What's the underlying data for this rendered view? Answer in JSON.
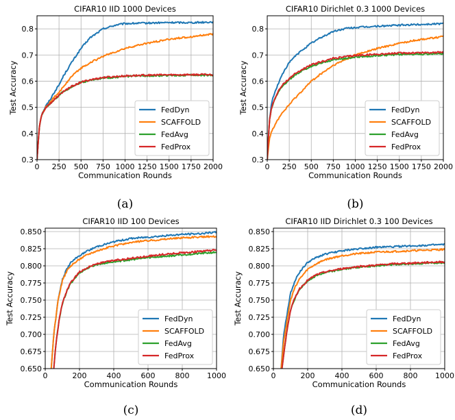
{
  "chart_data": [
    {
      "type": "line",
      "title": "CIFAR10 IID 1000 Devices",
      "xlabel": "Communication Rounds",
      "ylabel": "Test Accuracy",
      "caption": "(a)",
      "xlim": [
        0,
        2000
      ],
      "ylim": [
        0.3,
        0.85
      ],
      "xticks": [
        0,
        250,
        500,
        750,
        1000,
        1250,
        1500,
        1750,
        2000
      ],
      "xtick_labels": [
        "0",
        "250",
        "500",
        "750",
        "1000",
        "1250",
        "1500",
        "1750",
        "2000"
      ],
      "yticks": [
        0.3,
        0.4,
        0.5,
        0.6,
        0.7,
        0.8
      ],
      "ytick_labels": [
        "0.3",
        "0.4",
        "0.5",
        "0.6",
        "0.7",
        "0.8"
      ],
      "grid": true,
      "legend": "lower-right",
      "series": [
        {
          "name": "FedDyn",
          "color": "#1f77b4",
          "x": [
            0,
            25,
            50,
            100,
            150,
            200,
            250,
            300,
            400,
            500,
            600,
            750,
            900,
            1000,
            1250,
            1500,
            1750,
            2000
          ],
          "y": [
            0.3,
            0.42,
            0.47,
            0.505,
            0.53,
            0.56,
            0.585,
            0.62,
            0.675,
            0.725,
            0.765,
            0.8,
            0.815,
            0.82,
            0.822,
            0.824,
            0.824,
            0.826
          ]
        },
        {
          "name": "SCAFFOLD",
          "color": "#ff7f0e",
          "x": [
            0,
            25,
            50,
            100,
            150,
            200,
            250,
            300,
            400,
            500,
            600,
            750,
            1000,
            1250,
            1500,
            1750,
            2000
          ],
          "y": [
            0.3,
            0.42,
            0.47,
            0.5,
            0.52,
            0.54,
            0.555,
            0.58,
            0.62,
            0.65,
            0.67,
            0.695,
            0.725,
            0.745,
            0.76,
            0.77,
            0.78
          ]
        },
        {
          "name": "FedAvg",
          "color": "#2ca02c",
          "x": [
            0,
            25,
            50,
            100,
            150,
            200,
            250,
            300,
            400,
            500,
            600,
            750,
            1000,
            1250,
            1500,
            1750,
            2000
          ],
          "y": [
            0.3,
            0.42,
            0.47,
            0.5,
            0.515,
            0.53,
            0.545,
            0.56,
            0.58,
            0.595,
            0.603,
            0.612,
            0.618,
            0.621,
            0.622,
            0.623,
            0.623
          ]
        },
        {
          "name": "FedProx",
          "color": "#d62728",
          "x": [
            0,
            25,
            50,
            100,
            150,
            200,
            250,
            300,
            400,
            500,
            600,
            750,
            1000,
            1250,
            1500,
            1750,
            2000
          ],
          "y": [
            0.3,
            0.42,
            0.47,
            0.5,
            0.515,
            0.53,
            0.546,
            0.561,
            0.581,
            0.596,
            0.605,
            0.614,
            0.62,
            0.623,
            0.624,
            0.625,
            0.625
          ]
        }
      ]
    },
    {
      "type": "line",
      "title": "CIFAR10 Dirichlet 0.3 1000 Devices",
      "xlabel": "Communication Rounds",
      "ylabel": "Test Accuracy",
      "caption": "(b)",
      "xlim": [
        0,
        2000
      ],
      "ylim": [
        0.3,
        0.85
      ],
      "xticks": [
        0,
        250,
        500,
        750,
        1000,
        1250,
        1500,
        1750,
        2000
      ],
      "xtick_labels": [
        "0",
        "250",
        "500",
        "750",
        "1000",
        "1250",
        "1500",
        "1750",
        "2000"
      ],
      "yticks": [
        0.3,
        0.4,
        0.5,
        0.6,
        0.7,
        0.8
      ],
      "ytick_labels": [
        "0.3",
        "0.4",
        "0.5",
        "0.6",
        "0.7",
        "0.8"
      ],
      "grid": true,
      "legend": "lower-right",
      "series": [
        {
          "name": "FedDyn",
          "color": "#1f77b4",
          "x": [
            0,
            25,
            50,
            100,
            150,
            200,
            250,
            300,
            400,
            500,
            600,
            750,
            900,
            1000,
            1250,
            1500,
            1750,
            2000
          ],
          "y": [
            0.3,
            0.45,
            0.52,
            0.57,
            0.61,
            0.645,
            0.67,
            0.69,
            0.72,
            0.745,
            0.765,
            0.79,
            0.802,
            0.805,
            0.81,
            0.814,
            0.817,
            0.82
          ]
        },
        {
          "name": "SCAFFOLD",
          "color": "#ff7f0e",
          "x": [
            0,
            25,
            50,
            100,
            150,
            200,
            250,
            300,
            400,
            500,
            600,
            750,
            1000,
            1250,
            1500,
            1750,
            2000
          ],
          "y": [
            0.3,
            0.38,
            0.41,
            0.44,
            0.47,
            0.49,
            0.51,
            0.53,
            0.565,
            0.6,
            0.625,
            0.66,
            0.7,
            0.725,
            0.745,
            0.76,
            0.77
          ]
        },
        {
          "name": "FedAvg",
          "color": "#2ca02c",
          "x": [
            0,
            25,
            50,
            100,
            150,
            200,
            250,
            300,
            400,
            500,
            600,
            750,
            1000,
            1250,
            1500,
            1750,
            2000
          ],
          "y": [
            0.3,
            0.45,
            0.5,
            0.54,
            0.57,
            0.59,
            0.605,
            0.62,
            0.64,
            0.657,
            0.668,
            0.682,
            0.692,
            0.698,
            0.702,
            0.704,
            0.705
          ]
        },
        {
          "name": "FedProx",
          "color": "#d62728",
          "x": [
            0,
            25,
            50,
            100,
            150,
            200,
            250,
            300,
            400,
            500,
            600,
            750,
            1000,
            1250,
            1500,
            1750,
            2000
          ],
          "y": [
            0.3,
            0.45,
            0.5,
            0.545,
            0.575,
            0.595,
            0.61,
            0.625,
            0.645,
            0.662,
            0.673,
            0.687,
            0.698,
            0.703,
            0.707,
            0.709,
            0.71
          ]
        }
      ]
    },
    {
      "type": "line",
      "title": "CIFAR10 IID 100 Devices",
      "xlabel": "Communication Rounds",
      "ylabel": "Test Accuracy",
      "caption": "(c)",
      "xlim": [
        0,
        1000
      ],
      "ylim": [
        0.65,
        0.855
      ],
      "xticks": [
        0,
        200,
        400,
        600,
        800,
        1000
      ],
      "xtick_labels": [
        "0",
        "200",
        "400",
        "600",
        "800",
        "1000"
      ],
      "yticks": [
        0.65,
        0.675,
        0.7,
        0.725,
        0.75,
        0.775,
        0.8,
        0.825,
        0.85
      ],
      "ytick_labels": [
        "0.650",
        "0.675",
        "0.700",
        "0.725",
        "0.750",
        "0.775",
        "0.800",
        "0.825",
        "0.850"
      ],
      "grid": true,
      "legend": "lower-right",
      "series": [
        {
          "name": "FedDyn",
          "color": "#1f77b4",
          "x": [
            35,
            50,
            75,
            100,
            125,
            150,
            200,
            250,
            300,
            400,
            500,
            600,
            700,
            800,
            900,
            1000
          ],
          "y": [
            0.65,
            0.7,
            0.75,
            0.78,
            0.795,
            0.805,
            0.815,
            0.822,
            0.828,
            0.835,
            0.84,
            0.842,
            0.844,
            0.846,
            0.847,
            0.849
          ]
        },
        {
          "name": "SCAFFOLD",
          "color": "#ff7f0e",
          "x": [
            35,
            50,
            75,
            100,
            125,
            150,
            200,
            250,
            300,
            400,
            500,
            600,
            700,
            800,
            900,
            1000
          ],
          "y": [
            0.65,
            0.7,
            0.75,
            0.778,
            0.792,
            0.8,
            0.81,
            0.817,
            0.822,
            0.829,
            0.834,
            0.837,
            0.839,
            0.841,
            0.842,
            0.843
          ]
        },
        {
          "name": "FedAvg",
          "color": "#2ca02c",
          "x": [
            50,
            60,
            80,
            100,
            125,
            150,
            200,
            250,
            300,
            400,
            500,
            600,
            700,
            800,
            900,
            1000
          ],
          "y": [
            0.65,
            0.68,
            0.72,
            0.745,
            0.762,
            0.775,
            0.79,
            0.797,
            0.802,
            0.806,
            0.809,
            0.812,
            0.814,
            0.816,
            0.818,
            0.82
          ]
        },
        {
          "name": "FedProx",
          "color": "#d62728",
          "x": [
            50,
            60,
            80,
            100,
            125,
            150,
            200,
            250,
            300,
            400,
            500,
            600,
            700,
            800,
            900,
            1000
          ],
          "y": [
            0.65,
            0.68,
            0.72,
            0.745,
            0.763,
            0.776,
            0.791,
            0.798,
            0.803,
            0.808,
            0.811,
            0.814,
            0.817,
            0.819,
            0.821,
            0.823
          ]
        }
      ]
    },
    {
      "type": "line",
      "title": "CIFAR10 IID Dirichlet 0.3 100 Devices",
      "xlabel": "Communication Rounds",
      "ylabel": "Test Accuracy",
      "caption": "(d)",
      "xlim": [
        0,
        1000
      ],
      "ylim": [
        0.65,
        0.855
      ],
      "xticks": [
        0,
        200,
        400,
        600,
        800,
        1000
      ],
      "xtick_labels": [
        "0",
        "200",
        "400",
        "600",
        "800",
        "1000"
      ],
      "yticks": [
        0.65,
        0.675,
        0.7,
        0.725,
        0.75,
        0.775,
        0.8,
        0.825,
        0.85
      ],
      "ytick_labels": [
        "0.650",
        "0.675",
        "0.700",
        "0.725",
        "0.750",
        "0.775",
        "0.800",
        "0.825",
        "0.850"
      ],
      "grid": true,
      "legend": "lower-right",
      "series": [
        {
          "name": "FedDyn",
          "color": "#1f77b4",
          "x": [
            45,
            60,
            80,
            100,
            125,
            150,
            200,
            250,
            300,
            400,
            500,
            600,
            700,
            800,
            900,
            1000
          ],
          "y": [
            0.65,
            0.7,
            0.73,
            0.76,
            0.778,
            0.79,
            0.805,
            0.812,
            0.817,
            0.822,
            0.825,
            0.827,
            0.828,
            0.829,
            0.83,
            0.831
          ]
        },
        {
          "name": "SCAFFOLD",
          "color": "#ff7f0e",
          "x": [
            45,
            60,
            80,
            100,
            125,
            150,
            200,
            250,
            300,
            400,
            500,
            600,
            700,
            800,
            900,
            1000
          ],
          "y": [
            0.65,
            0.69,
            0.72,
            0.75,
            0.768,
            0.78,
            0.795,
            0.803,
            0.809,
            0.815,
            0.818,
            0.82,
            0.821,
            0.822,
            0.823,
            0.824
          ]
        },
        {
          "name": "FedAvg",
          "color": "#2ca02c",
          "x": [
            50,
            65,
            85,
            100,
            125,
            150,
            200,
            250,
            300,
            400,
            500,
            600,
            700,
            800,
            900,
            1000
          ],
          "y": [
            0.65,
            0.68,
            0.715,
            0.735,
            0.752,
            0.765,
            0.778,
            0.786,
            0.79,
            0.795,
            0.798,
            0.8,
            0.802,
            0.803,
            0.804,
            0.805
          ]
        },
        {
          "name": "FedProx",
          "color": "#d62728",
          "x": [
            50,
            65,
            85,
            100,
            125,
            150,
            200,
            250,
            300,
            400,
            500,
            600,
            700,
            800,
            900,
            1000
          ],
          "y": [
            0.65,
            0.68,
            0.715,
            0.736,
            0.753,
            0.766,
            0.779,
            0.787,
            0.791,
            0.796,
            0.799,
            0.801,
            0.803,
            0.804,
            0.805,
            0.806
          ]
        }
      ]
    }
  ]
}
